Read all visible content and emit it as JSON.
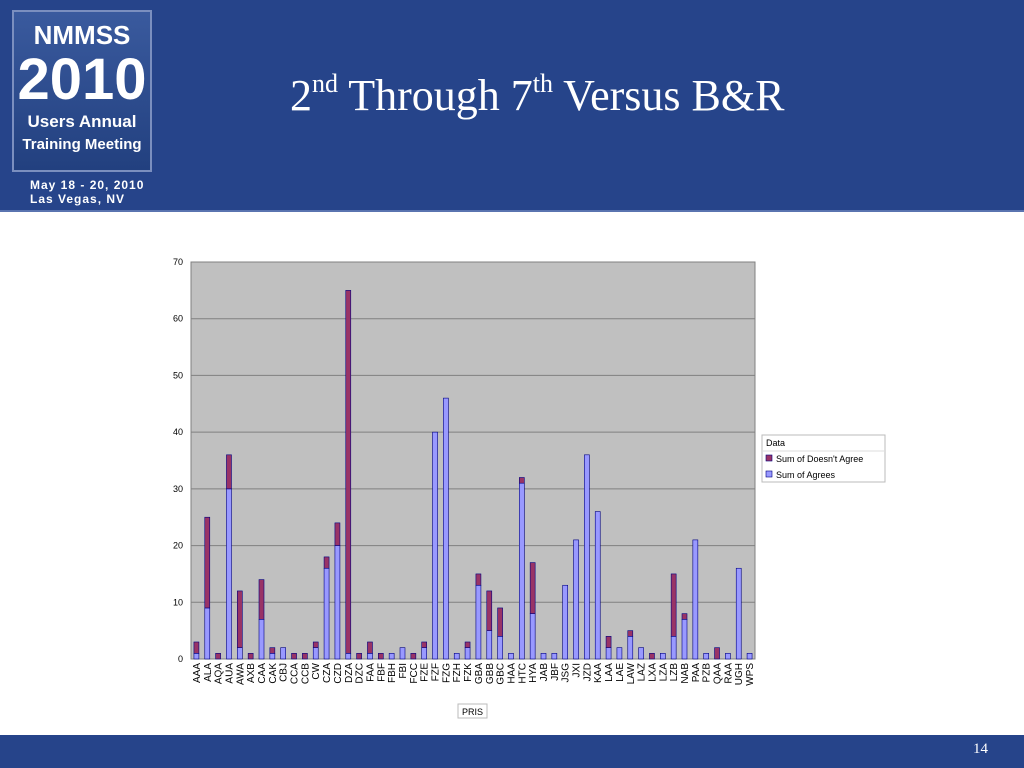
{
  "slide": {
    "title_parts": [
      "2",
      "nd",
      " Through 7",
      "th",
      " Versus B&R"
    ],
    "logo": {
      "name": "NMMSS",
      "year": "2010",
      "line1": "Users Annual",
      "line2": "Training Meeting",
      "dates": "May 18 - 20, 2010",
      "place": "Las Vegas, NV"
    },
    "page_number": "14"
  },
  "chart_data": {
    "type": "stacked-bar",
    "x_label": "PRIS",
    "legend_title": "Data",
    "legend": "right",
    "grid": true,
    "categories": [
      "AAA",
      "ALA",
      "AQA",
      "AUA",
      "AWA",
      "AXB",
      "CAA",
      "CAK",
      "CBJ",
      "CCA",
      "CCB",
      "CW",
      "CZA",
      "CZD",
      "DZA",
      "DZC",
      "FAA",
      "FBF",
      "FBH",
      "FBI",
      "FCC",
      "FZE",
      "FZF",
      "FZG",
      "FZH",
      "FZK",
      "GBA",
      "GBB",
      "GBC",
      "HAA",
      "HTC",
      "HYA",
      "JAB",
      "JBF",
      "JSG",
      "JXI",
      "JZD",
      "KAA",
      "LAA",
      "LAE",
      "LAW",
      "LAZ",
      "LXA",
      "LZA",
      "LZB",
      "NAB",
      "PAA",
      "PZB",
      "QAA",
      "RAA",
      "UGH",
      "WPS"
    ],
    "series": [
      {
        "name": "Sum of Doesn't Agree",
        "color": "#993366",
        "values": [
          2,
          16,
          1,
          6,
          10,
          1,
          7,
          1,
          0,
          1,
          1,
          1,
          2,
          4,
          64,
          1,
          2,
          1,
          0,
          0,
          1,
          1,
          0,
          0,
          0,
          1,
          2,
          7,
          5,
          0,
          1,
          9,
          0,
          0,
          0,
          0,
          0,
          0,
          2,
          0,
          1,
          0,
          1,
          0,
          11,
          1,
          0,
          0,
          2,
          0,
          0,
          0
        ]
      },
      {
        "name": "Sum of Agrees",
        "color": "#9999ff",
        "values": [
          1,
          9,
          0,
          30,
          2,
          0,
          7,
          1,
          2,
          0,
          0,
          2,
          16,
          20,
          1,
          0,
          1,
          0,
          1,
          2,
          0,
          2,
          40,
          46,
          1,
          2,
          13,
          5,
          4,
          1,
          31,
          8,
          1,
          1,
          13,
          21,
          36,
          26,
          2,
          2,
          4,
          2,
          0,
          1,
          4,
          7,
          21,
          1,
          0,
          1,
          16,
          1
        ]
      }
    ],
    "ylim": [
      0,
      70
    ],
    "yticks": [
      0,
      10,
      20,
      30,
      40,
      50,
      60,
      70
    ]
  }
}
